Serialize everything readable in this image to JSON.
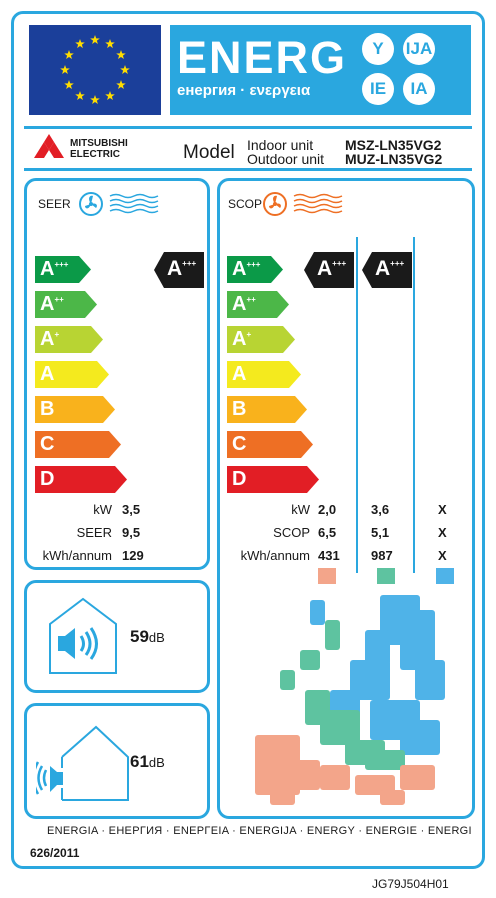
{
  "header": {
    "energy_word": "ENERG",
    "energy_subtitle": "енергия · ενεργεια",
    "language_badges": [
      "Y",
      "IJA",
      "IE",
      "IA"
    ]
  },
  "manufacturer": {
    "name_line1": "MITSUBISHI",
    "name_line2": "ELECTRIC"
  },
  "model": {
    "label": "Model",
    "indoor_label": "Indoor unit",
    "outdoor_label": "Outdoor unit",
    "indoor_code": "MSZ-LN35VG2",
    "outdoor_code": "MUZ-LN35VG2"
  },
  "energy_scale": [
    {
      "letter": "A",
      "sup": "+++",
      "color": "#0b9a48"
    },
    {
      "letter": "A",
      "sup": "++",
      "color": "#4cb748"
    },
    {
      "letter": "A",
      "sup": "+",
      "color": "#b8d433"
    },
    {
      "letter": "A",
      "sup": "",
      "color": "#f4ea1e"
    },
    {
      "letter": "B",
      "sup": "",
      "color": "#f9b21c"
    },
    {
      "letter": "C",
      "sup": "",
      "color": "#ee6f24"
    },
    {
      "letter": "D",
      "sup": "",
      "color": "#e21e25"
    }
  ],
  "cooling": {
    "title": "SEER",
    "rating": {
      "letter": "A",
      "sup": "+++"
    },
    "rows": [
      {
        "label": "kW",
        "value": "3,5"
      },
      {
        "label": "SEER",
        "value": "9,5"
      },
      {
        "label": "kWh/annum",
        "value": "129"
      }
    ]
  },
  "heating": {
    "title": "SCOP",
    "ratings": [
      {
        "letter": "A",
        "sup": "+++"
      },
      {
        "letter": "A",
        "sup": "+++"
      }
    ],
    "row_labels": [
      "kW",
      "SCOP",
      "kWh/annum"
    ],
    "columns": [
      {
        "values": [
          "2,0",
          "6,5",
          "431"
        ],
        "color": "#f3a58a"
      },
      {
        "values": [
          "3,6",
          "5,1",
          "987"
        ],
        "color": "#5ec3a0"
      },
      {
        "values": [
          "X",
          "X",
          "X"
        ],
        "color": "#4fb3e8"
      }
    ]
  },
  "noise": {
    "indoor_value": "59",
    "outdoor_value": "61",
    "unit": "dB"
  },
  "footer": {
    "languages_line": "ENERGIA · ЕНЕРГИЯ · ΕΝΕΡΓΕΙΑ · ENERGIJA · ENERGY · ENERGIE · ENERGI",
    "regulation": "626/2011",
    "document_code": "JG79J504H01"
  },
  "colors": {
    "frame_blue": "#2aa7df",
    "eu_blue": "#1b3f9a",
    "eu_star": "#ffdd00",
    "rating_black": "#1a1a1a"
  }
}
